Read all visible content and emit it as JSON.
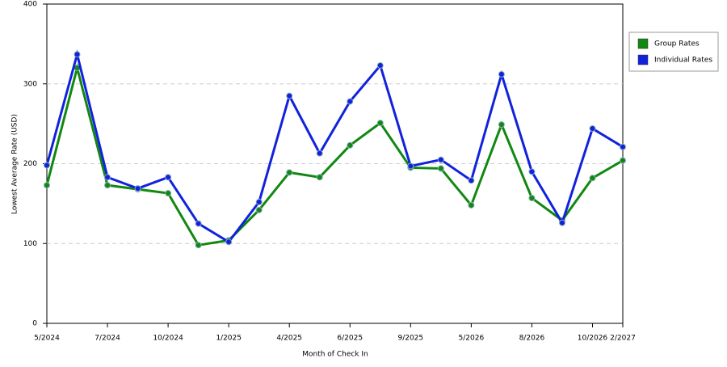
{
  "chart_data": {
    "type": "line",
    "x_label": "Month of Check In",
    "y_label": "Lowest Average Rate (USD)",
    "categories": [
      "5/2024",
      null,
      "7/2024",
      null,
      "10/2024",
      null,
      "1/2025",
      null,
      "4/2025",
      null,
      "6/2025",
      null,
      "9/2025",
      null,
      "5/2026",
      null,
      "8/2026",
      null,
      "10/2026",
      "2/2027"
    ],
    "series": [
      {
        "name": "Group Rates",
        "color": "#118811",
        "values": [
          173,
          320,
          173,
          168,
          163,
          98,
          104,
          142,
          189,
          183,
          223,
          251,
          195,
          194,
          148,
          249,
          157,
          129,
          182,
          204
        ]
      },
      {
        "name": "Individual Rates",
        "color": "#1122dd",
        "values": [
          198,
          337,
          183,
          169,
          183,
          125,
          102,
          152,
          285,
          213,
          278,
          323,
          197,
          205,
          179,
          312,
          190,
          126,
          244,
          221
        ]
      }
    ],
    "ylim": [
      0,
      400
    ],
    "yticks": [
      0,
      100,
      200,
      300,
      400
    ],
    "grid": true,
    "legend": "right"
  }
}
